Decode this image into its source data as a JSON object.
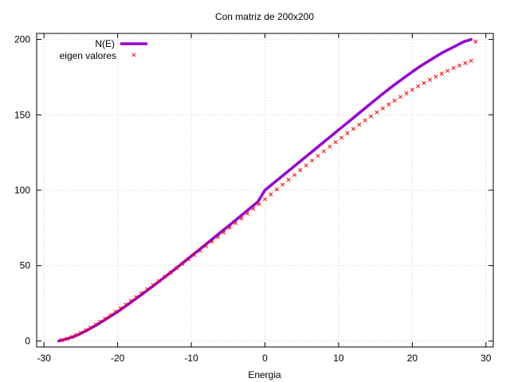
{
  "chart_data": {
    "type": "line",
    "title": "Con matriz de 200x200",
    "xlabel": "Energia",
    "ylabel": "",
    "xlim": [
      -31,
      31
    ],
    "ylim": [
      -4,
      204
    ],
    "xticks": [
      -30,
      -20,
      -10,
      0,
      10,
      20,
      30
    ],
    "yticks": [
      0,
      50,
      100,
      150,
      200
    ],
    "grid": true,
    "legend_position": "top-left",
    "series": [
      {
        "name": "N(E)",
        "kind": "line",
        "color": "#9400d3",
        "x": [
          -28.0,
          -27.0,
          -26.0,
          -25.0,
          -24.0,
          -23.0,
          -22.0,
          -21.0,
          -20.0,
          -19.0,
          -18.0,
          -17.0,
          -16.0,
          -15.0,
          -14.0,
          -13.0,
          -12.0,
          -11.0,
          -10.0,
          -9.0,
          -8.0,
          -7.0,
          -6.0,
          -5.0,
          -4.0,
          -3.0,
          -2.0,
          -1.0,
          0.0,
          1.0,
          2.0,
          3.0,
          4.0,
          5.0,
          6.0,
          7.0,
          8.0,
          9.0,
          10.0,
          11.0,
          12.0,
          13.0,
          14.0,
          15.0,
          16.0,
          17.0,
          18.0,
          19.0,
          20.0,
          21.0,
          22.0,
          23.0,
          24.0,
          25.0,
          26.0,
          27.0,
          28.0
        ],
        "y": [
          0.0,
          1.2,
          2.8,
          5.0,
          7.5,
          10.2,
          13.2,
          16.3,
          19.4,
          22.8,
          26.3,
          29.9,
          33.5,
          37.2,
          40.9,
          44.7,
          48.5,
          52.4,
          56.3,
          60.2,
          64.2,
          68.2,
          72.1,
          76.1,
          80.1,
          84.1,
          88.1,
          92.1,
          100.0,
          104.0,
          108.0,
          112.0,
          116.0,
          120.0,
          124.0,
          128.0,
          132.0,
          136.0,
          140.0,
          144.0,
          148.0,
          152.0,
          156.0,
          160.0,
          164.0,
          167.8,
          171.5,
          175.0,
          178.5,
          182.0,
          185.0,
          188.0,
          191.0,
          193.5,
          196.0,
          198.5,
          200.0
        ]
      },
      {
        "name": "eigen valores",
        "kind": "points",
        "color": "#ff0000",
        "x": [
          -27.6,
          -26.9,
          -26.2,
          -25.6,
          -25.0,
          -24.3,
          -23.7,
          -23.0,
          -22.4,
          -21.7,
          -21.0,
          -20.3,
          -19.6,
          -18.9,
          -18.2,
          -17.5,
          -16.8,
          -16.0,
          -15.2,
          -14.4,
          -13.6,
          -12.8,
          -12.0,
          -11.2,
          -10.4,
          -9.6,
          -8.8,
          -8.0,
          -7.2,
          -6.4,
          -5.6,
          -4.8,
          -4.0,
          -3.2,
          -2.4,
          -1.6,
          -0.8,
          0.0,
          0.8,
          1.6,
          2.4,
          3.2,
          4.0,
          4.8,
          5.6,
          6.4,
          7.2,
          8.0,
          8.8,
          9.6,
          10.4,
          11.2,
          12.0,
          12.8,
          13.6,
          14.4,
          15.2,
          16.0,
          16.8,
          17.6,
          18.4,
          19.2,
          20.0,
          20.8,
          21.6,
          22.4,
          23.2,
          24.0,
          24.8,
          25.6,
          26.4,
          27.2,
          28.0,
          28.6
        ],
        "y": [
          0.5,
          1.5,
          2.7,
          4.0,
          5.5,
          7.2,
          9.0,
          10.9,
          12.8,
          14.9,
          17.1,
          19.4,
          21.7,
          24.1,
          26.6,
          29.1,
          31.7,
          34.4,
          37.1,
          39.8,
          42.6,
          45.4,
          48.3,
          51.2,
          54.1,
          57.0,
          60.0,
          63.0,
          66.0,
          69.0,
          72.0,
          75.1,
          78.2,
          81.3,
          84.5,
          87.6,
          90.8,
          94.0,
          97.2,
          100.5,
          103.7,
          106.9,
          110.1,
          113.3,
          116.5,
          119.6,
          122.7,
          125.8,
          128.9,
          131.9,
          134.9,
          137.8,
          140.7,
          143.5,
          146.3,
          149.0,
          151.7,
          154.3,
          156.9,
          159.4,
          161.9,
          164.3,
          166.6,
          168.9,
          171.1,
          173.2,
          175.3,
          177.3,
          179.2,
          181.0,
          182.7,
          184.3,
          185.8,
          198.5
        ]
      }
    ]
  }
}
